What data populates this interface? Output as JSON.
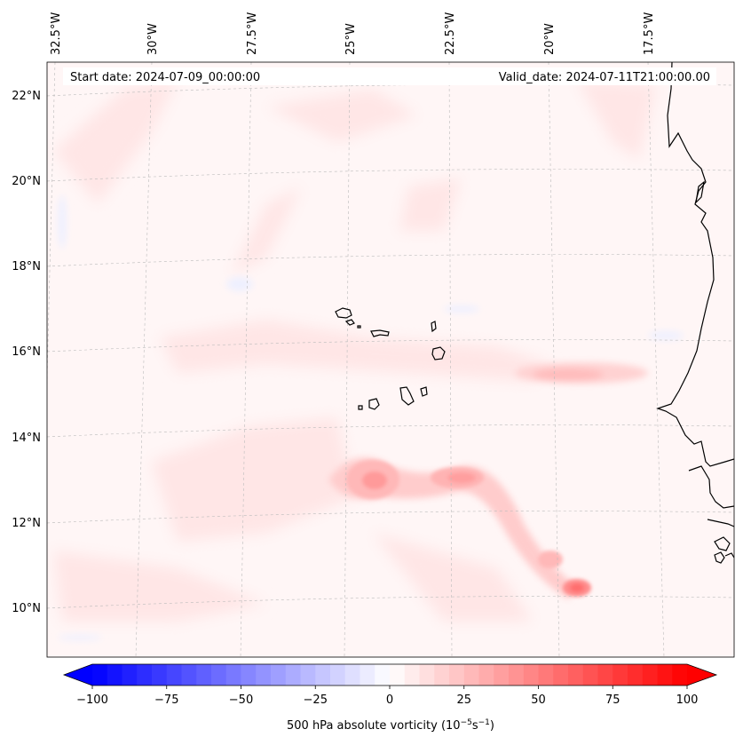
{
  "header": {
    "start_date": "Start date: 2024-07-09_00:00:00",
    "valid_date": "Valid_date: 2024-07-11T21:00:00.00"
  },
  "map": {
    "longitude_labels": [
      "32.5°W",
      "30°W",
      "27.5°W",
      "25°W",
      "22.5°W",
      "20°W",
      "17.5°W"
    ],
    "latitude_labels": [
      "22°N",
      "20°N",
      "18°N",
      "16°N",
      "14°N",
      "12°N",
      "10°N"
    ],
    "field": "500 hPa absolute vorticity"
  },
  "colorbar": {
    "tick_labels": [
      "−100",
      "−75",
      "−50",
      "−25",
      "0",
      "25",
      "50",
      "75",
      "100"
    ],
    "min": -100,
    "max": 100,
    "label": "500 hPa absolute vorticity (10",
    "label_exp1": "−5",
    "label_mid": "s",
    "label_exp2": "−1",
    "label_end": ")",
    "low_color": "#0000ff",
    "mid_color": "#ffffff",
    "high_color": "#ff0000"
  }
}
